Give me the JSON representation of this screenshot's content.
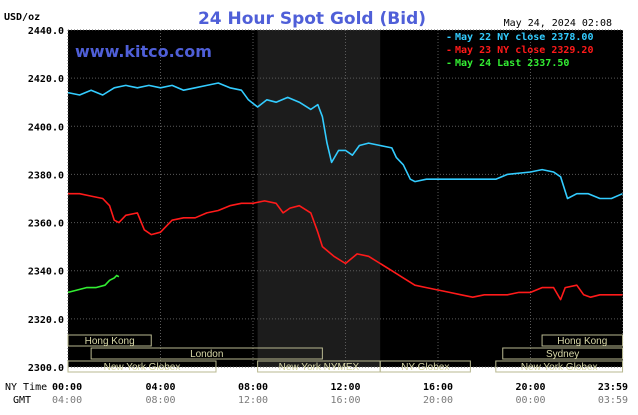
{
  "header": {
    "title": "24 Hour Spot Gold (Bid)",
    "unit_label": "USD/oz",
    "timestamp": "May 24, 2024 02:08",
    "website": "www.kitco.com"
  },
  "legend": [
    {
      "label": "May 22 NY close 2378.00",
      "color": "#33ccff"
    },
    {
      "label": "May 23 NY close 2329.20",
      "color": "#ff1a1a"
    },
    {
      "label": "May 24 Last 2337.50",
      "color": "#33ee33"
    }
  ],
  "chart_data": {
    "type": "line",
    "title": "24 Hour Spot Gold (Bid)",
    "ylabel": "USD/oz",
    "xlabel": "",
    "ylim": [
      2300,
      2440
    ],
    "xlim": [
      0,
      24
    ],
    "y_ticks": [
      "2440.0",
      "2420.0",
      "2400.0",
      "2380.0",
      "2360.0",
      "2340.0",
      "2320.0",
      "2300.0"
    ],
    "y_tick_values": [
      2440,
      2420,
      2400,
      2380,
      2360,
      2340,
      2320,
      2300
    ],
    "x_tick_values": [
      0,
      4,
      8,
      12,
      16,
      20,
      23.98
    ],
    "x_ticks_ny": [
      "00:00",
      "04:00",
      "08:00",
      "12:00",
      "16:00",
      "20:00",
      "23:59"
    ],
    "x_ticks_gmt": [
      "04:00",
      "08:00",
      "12:00",
      "16:00",
      "20:00",
      "00:00",
      "03:59"
    ],
    "x_axis_labels": {
      "ny": "NY Time",
      "gmt": "GMT"
    },
    "highlight_range": [
      8.2,
      13.5
    ],
    "grid": true,
    "legend_position": "top-right",
    "series": [
      {
        "name": "May 22 NY close 2378.00",
        "color": "#33ccff",
        "points": [
          [
            0,
            2414
          ],
          [
            0.5,
            2413
          ],
          [
            1,
            2415
          ],
          [
            1.5,
            2413
          ],
          [
            2,
            2416
          ],
          [
            2.5,
            2417
          ],
          [
            3,
            2416
          ],
          [
            3.5,
            2417
          ],
          [
            4,
            2416
          ],
          [
            4.5,
            2417
          ],
          [
            5,
            2415
          ],
          [
            5.5,
            2416
          ],
          [
            6,
            2417
          ],
          [
            6.5,
            2418
          ],
          [
            7,
            2416
          ],
          [
            7.5,
            2415
          ],
          [
            7.8,
            2411
          ],
          [
            8.2,
            2408
          ],
          [
            8.6,
            2411
          ],
          [
            9,
            2410
          ],
          [
            9.5,
            2412
          ],
          [
            10,
            2410
          ],
          [
            10.5,
            2407
          ],
          [
            10.8,
            2409
          ],
          [
            11,
            2404
          ],
          [
            11.2,
            2393
          ],
          [
            11.4,
            2385
          ],
          [
            11.7,
            2390
          ],
          [
            12,
            2390
          ],
          [
            12.3,
            2388
          ],
          [
            12.6,
            2392
          ],
          [
            13,
            2393
          ],
          [
            13.5,
            2392
          ],
          [
            14,
            2391
          ],
          [
            14.2,
            2387
          ],
          [
            14.5,
            2384
          ],
          [
            14.8,
            2378
          ],
          [
            15,
            2377
          ],
          [
            15.5,
            2378
          ],
          [
            16,
            2378
          ],
          [
            17,
            2378
          ],
          [
            18,
            2378
          ],
          [
            18.5,
            2378
          ],
          [
            19,
            2380
          ],
          [
            20,
            2381
          ],
          [
            20.5,
            2382
          ],
          [
            21,
            2381
          ],
          [
            21.3,
            2379
          ],
          [
            21.6,
            2370
          ],
          [
            22,
            2372
          ],
          [
            22.5,
            2372
          ],
          [
            23,
            2370
          ],
          [
            23.5,
            2370
          ],
          [
            23.98,
            2372
          ]
        ]
      },
      {
        "name": "May 23 NY close 2329.20",
        "color": "#ff1a1a",
        "points": [
          [
            0,
            2372
          ],
          [
            0.5,
            2372
          ],
          [
            1,
            2371
          ],
          [
            1.5,
            2370
          ],
          [
            1.8,
            2367
          ],
          [
            2,
            2361
          ],
          [
            2.2,
            2360
          ],
          [
            2.5,
            2363
          ],
          [
            3,
            2364
          ],
          [
            3.3,
            2357
          ],
          [
            3.6,
            2355
          ],
          [
            4,
            2356
          ],
          [
            4.5,
            2361
          ],
          [
            5,
            2362
          ],
          [
            5.5,
            2362
          ],
          [
            6,
            2364
          ],
          [
            6.5,
            2365
          ],
          [
            7,
            2367
          ],
          [
            7.5,
            2368
          ],
          [
            8,
            2368
          ],
          [
            8.5,
            2369
          ],
          [
            9,
            2368
          ],
          [
            9.3,
            2364
          ],
          [
            9.6,
            2366
          ],
          [
            10,
            2367
          ],
          [
            10.5,
            2364
          ],
          [
            10.8,
            2356
          ],
          [
            11,
            2350
          ],
          [
            11.5,
            2346
          ],
          [
            12,
            2343
          ],
          [
            12.5,
            2347
          ],
          [
            13,
            2346
          ],
          [
            13.5,
            2343
          ],
          [
            14,
            2340
          ],
          [
            14.5,
            2337
          ],
          [
            15,
            2334
          ],
          [
            15.5,
            2333
          ],
          [
            16,
            2332
          ],
          [
            16.5,
            2331
          ],
          [
            17,
            2330
          ],
          [
            17.5,
            2329
          ],
          [
            18,
            2330
          ],
          [
            19,
            2330
          ],
          [
            19.5,
            2331
          ],
          [
            20,
            2331
          ],
          [
            20.5,
            2333
          ],
          [
            21,
            2333
          ],
          [
            21.3,
            2328
          ],
          [
            21.5,
            2333
          ],
          [
            22,
            2334
          ],
          [
            22.3,
            2330
          ],
          [
            22.6,
            2329
          ],
          [
            23,
            2330
          ],
          [
            23.5,
            2330
          ],
          [
            23.98,
            2330
          ]
        ]
      },
      {
        "name": "May 24 Last 2337.50",
        "color": "#33ee33",
        "points": [
          [
            0,
            2331
          ],
          [
            0.4,
            2332
          ],
          [
            0.8,
            2333
          ],
          [
            1.2,
            2333
          ],
          [
            1.6,
            2334
          ],
          [
            1.8,
            2336
          ],
          [
            2,
            2337
          ],
          [
            2.1,
            2338
          ],
          [
            2.2,
            2337.5
          ]
        ]
      }
    ]
  },
  "sessions": [
    {
      "label": "Hong Kong",
      "row": 0,
      "start": 0,
      "end": 3.6
    },
    {
      "label": "Hong Kong",
      "row": 0,
      "start": 20.5,
      "end": 23.98
    },
    {
      "label": "London",
      "row": 1,
      "start": 1,
      "end": 11
    },
    {
      "label": "Sydney",
      "row": 1,
      "start": 18.8,
      "end": 23.98
    },
    {
      "label": "New York Globex",
      "row": 2,
      "start": 0,
      "end": 6.4
    },
    {
      "label": "New York NYMEX",
      "row": 2,
      "start": 8.2,
      "end": 13.5
    },
    {
      "label": "NY Globex",
      "row": 2,
      "start": 13.5,
      "end": 17.4
    },
    {
      "label": "New York Globex",
      "row": 2,
      "start": 18.5,
      "end": 23.98
    }
  ]
}
